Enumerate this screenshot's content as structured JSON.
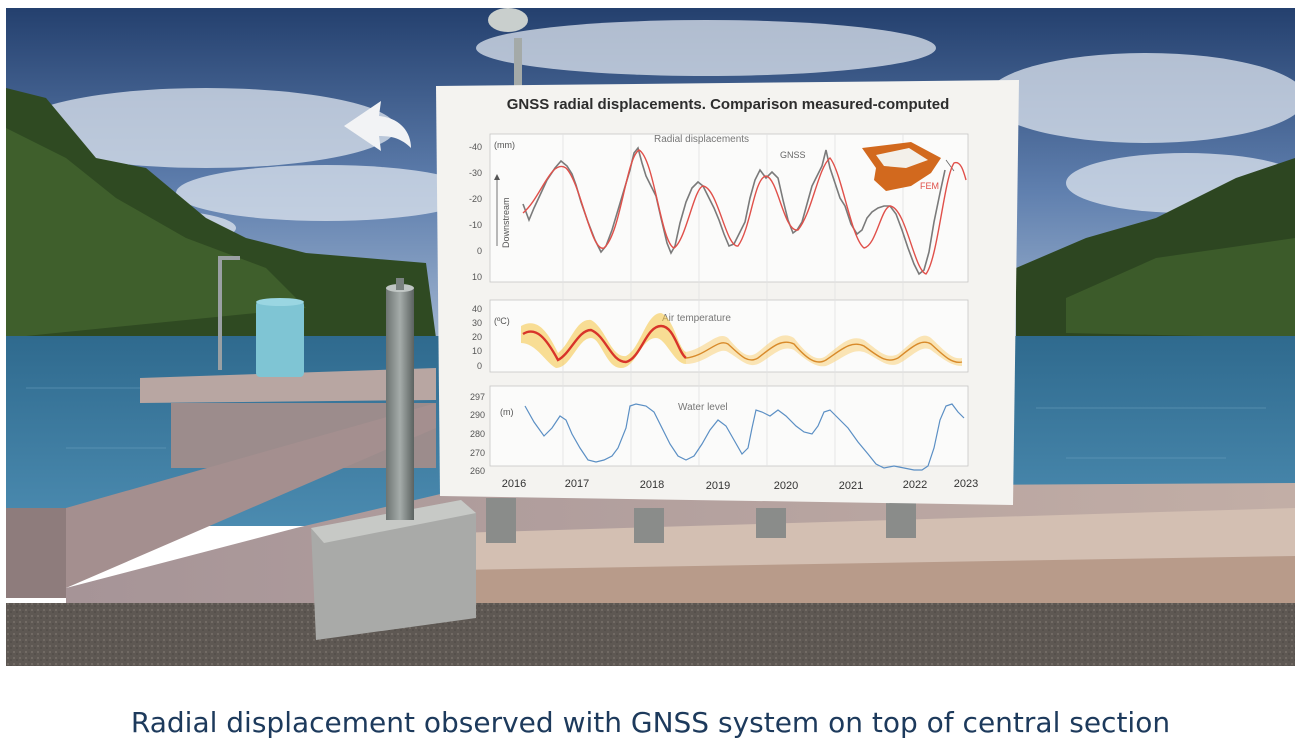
{
  "caption": "Radial displacement observed with GNSS system on top of central section",
  "back_control": {
    "icon": "back-arrow-icon"
  },
  "board": {
    "title": "GNSS radial displacements. Comparison measured-computed",
    "panels": {
      "displacement": {
        "title": "Radial displacements",
        "unit": "(mm)",
        "direction_label": "Downstream",
        "y_ticks": [
          "-40",
          "-30",
          "-20",
          "-10",
          "0",
          "10"
        ],
        "legend_gnss": "GNSS",
        "legend_fem": "FEM"
      },
      "temperature": {
        "title": "Air temperature",
        "unit": "(ºC)",
        "y_ticks": [
          "40",
          "30",
          "20",
          "10",
          "0"
        ]
      },
      "water": {
        "title": "Water level",
        "unit": "(m)",
        "y_ticks": [
          "297",
          "290",
          "280",
          "270",
          "260"
        ]
      }
    },
    "x_ticks": [
      "2016",
      "2017",
      "2018",
      "2019",
      "2020",
      "2021",
      "2022",
      "2023"
    ]
  },
  "colors": {
    "sky": "#3e5f8f",
    "water": "#3e7ea0",
    "gnss_line": "#7a7a7a",
    "fem_line": "#e0504a",
    "temp_line": "#d8342a",
    "water_line": "#5b8fc4",
    "caption": "#1d3a5c"
  }
}
